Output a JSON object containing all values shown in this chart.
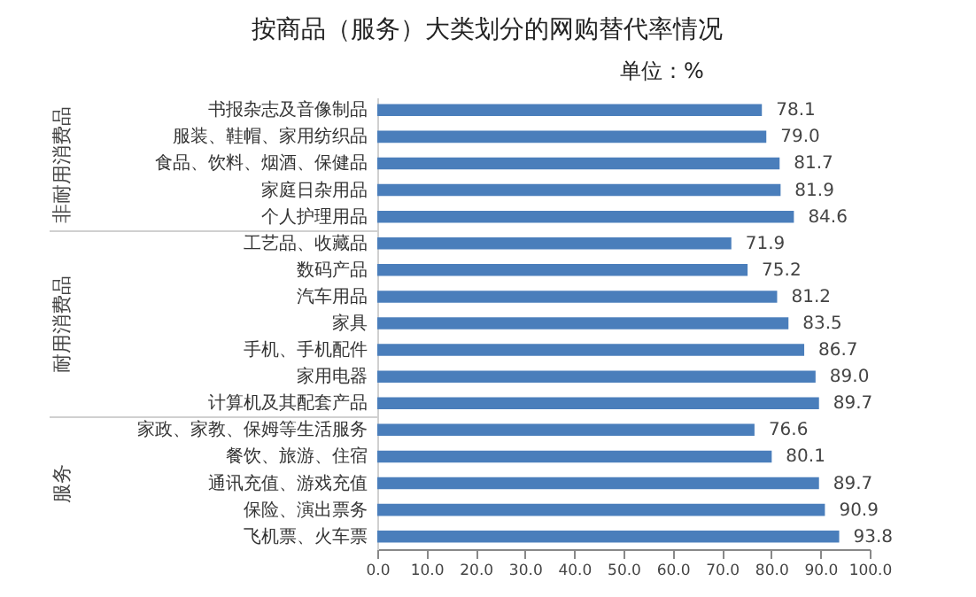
{
  "chart_data": {
    "type": "bar",
    "orientation": "horizontal",
    "title": "按商品（服务）大类划分的网购替代率情况",
    "subtitle": "单位：%",
    "categories": [
      "书报杂志及音像制品",
      "服装、鞋帽、家用纺织品",
      "食品、饮料、烟酒、保健品",
      "家庭日杂用品",
      "个人护理用品",
      "工艺品、收藏品",
      "数码产品",
      "汽车用品",
      "家具",
      "手机、手机配件",
      "家用电器",
      "计算机及其配套产品",
      "家政、家教、保姆等生活服务",
      "餐饮、旅游、住宿",
      "通讯充值、游戏充值",
      "保险、演出票务",
      "飞机票、火车票"
    ],
    "values": [
      78.1,
      79.0,
      81.7,
      81.9,
      84.6,
      71.9,
      75.2,
      81.2,
      83.5,
      86.7,
      89.0,
      89.7,
      76.6,
      80.1,
      89.7,
      90.9,
      93.8
    ],
    "value_labels": [
      "78.1",
      "79.0",
      "81.7",
      "81.9",
      "84.6",
      "71.9",
      "75.2",
      "81.2",
      "83.5",
      "86.7",
      "89.0",
      "89.7",
      "76.6",
      "80.1",
      "89.7",
      "90.9",
      "93.8"
    ],
    "color": "#4a7ebb",
    "xlim": [
      0,
      100
    ],
    "xticks": [
      {
        "value": 0,
        "label": "0.0"
      },
      {
        "value": 10,
        "label": "10.0"
      },
      {
        "value": 20,
        "label": "20.0"
      },
      {
        "value": 30,
        "label": "30.0"
      },
      {
        "value": 40,
        "label": "40.0"
      },
      {
        "value": 50,
        "label": "50.0"
      },
      {
        "value": 60,
        "label": "60.0"
      },
      {
        "value": 70,
        "label": "70.0"
      },
      {
        "value": 80,
        "label": "80.0"
      },
      {
        "value": 90,
        "label": "90.0"
      },
      {
        "value": 100,
        "label": "100.0"
      }
    ],
    "annotations": [
      "非耐用消费品",
      "耐用消费品",
      "服务"
    ],
    "grid": false
  }
}
